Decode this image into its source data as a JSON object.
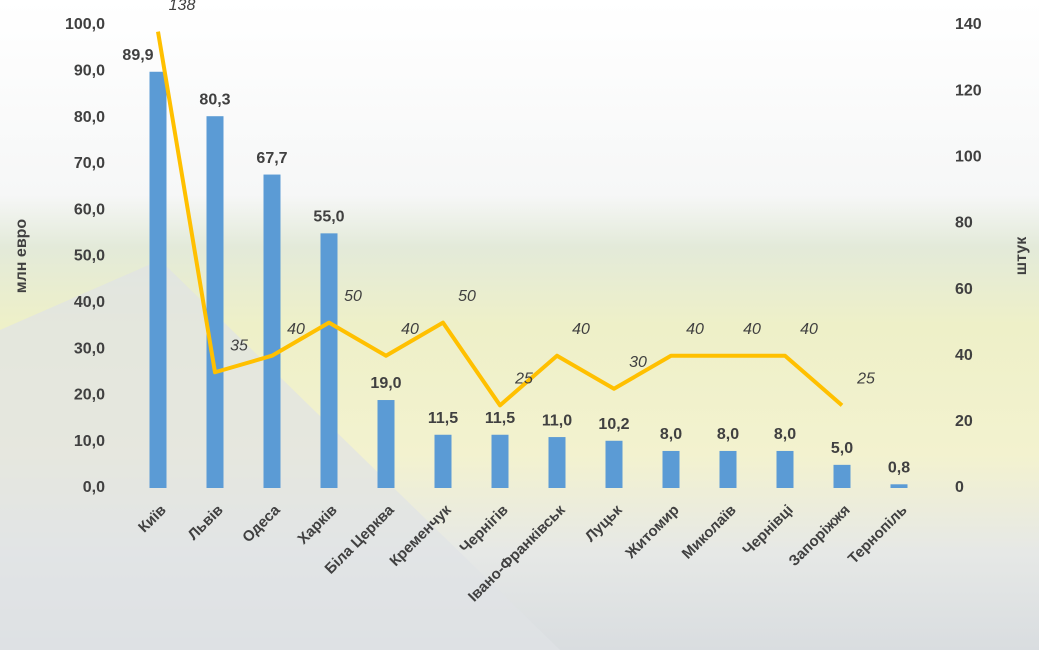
{
  "chart_data": {
    "type": "bar-line",
    "ylabel": "млн евро",
    "y2label": "штук",
    "categories": [
      "Київ",
      "Львів",
      "Одеса",
      "Харків",
      "Біла Церква",
      "Кременчук",
      "Чернігів",
      "Івано-Франківськ",
      "Луцьк",
      "Житомир",
      "Миколаїв",
      "Чернівці",
      "Запоріжжя",
      "Тернопіль"
    ],
    "series": [
      {
        "type": "bar",
        "color": "#5b9bd5",
        "values": [
          89.9,
          80.3,
          67.7,
          55.0,
          19.0,
          11.5,
          11.5,
          11.0,
          10.2,
          8.0,
          8.0,
          8.0,
          5.0,
          0.8
        ],
        "value_labels": [
          "89,9",
          "80,3",
          "67,7",
          "55,0",
          "19,0",
          "11,5",
          "11,5",
          "11,0",
          "10,2",
          "8,0",
          "8,0",
          "8,0",
          "5,0",
          "0,8"
        ]
      },
      {
        "type": "line",
        "color": "#ffc000",
        "axis": "y2",
        "values": [
          138,
          35,
          40,
          50,
          40,
          50,
          25,
          40,
          30,
          40,
          40,
          40,
          25,
          null
        ]
      }
    ],
    "ylim": [
      0,
      100
    ],
    "yticks": [
      {
        "value": 0,
        "label": "0,0"
      },
      {
        "value": 10,
        "label": "10,0"
      },
      {
        "value": 20,
        "label": "20,0"
      },
      {
        "value": 30,
        "label": "30,0"
      },
      {
        "value": 40,
        "label": "40,0"
      },
      {
        "value": 50,
        "label": "50,0"
      },
      {
        "value": 60,
        "label": "60,0"
      },
      {
        "value": 70,
        "label": "70,0"
      },
      {
        "value": 80,
        "label": "80,0"
      },
      {
        "value": 90,
        "label": "90,0"
      },
      {
        "value": 100,
        "label": "100,0"
      }
    ],
    "y2lim": [
      0,
      140
    ],
    "y2ticks": [
      0,
      20,
      40,
      60,
      80,
      100,
      120,
      140
    ]
  }
}
